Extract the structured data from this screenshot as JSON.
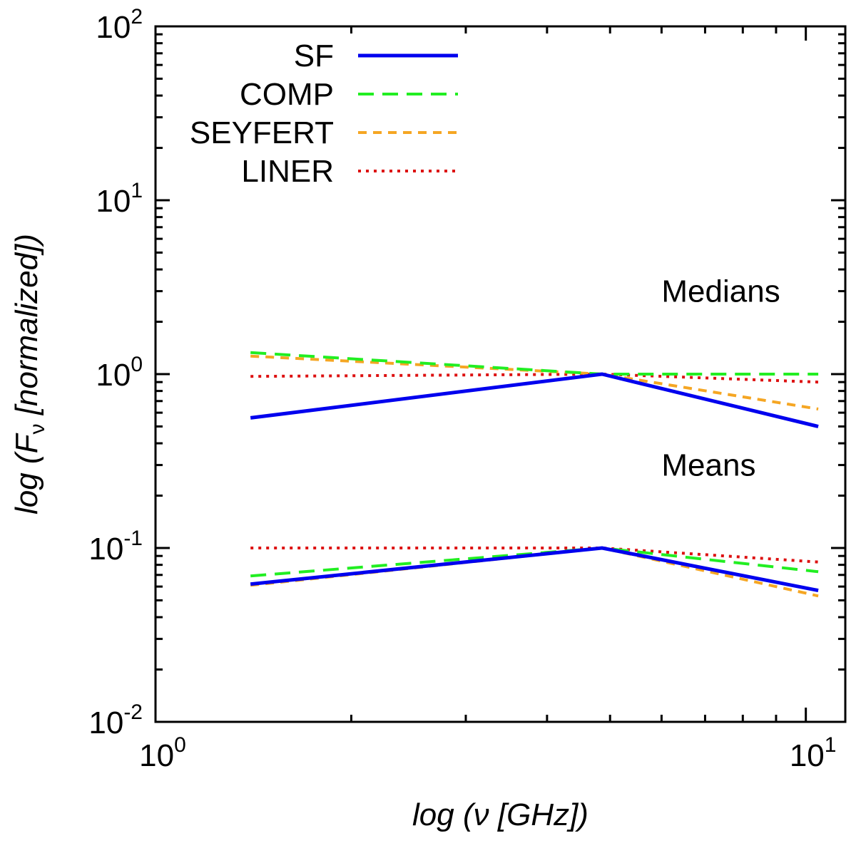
{
  "chart_data": {
    "type": "line",
    "xlabel": "log (ν [GHz])",
    "ylabel": "log (F_ν [normalized])",
    "ylabel_parts": {
      "prefix": "log (F",
      "subscript": "ν",
      "suffix": " [normalized])"
    },
    "x_scale": "log",
    "y_scale": "log",
    "xlim": [
      1,
      11.5
    ],
    "ylim": [
      0.01,
      100
    ],
    "x_ticks": [
      {
        "value": 1,
        "base": "10",
        "exp": "0"
      },
      {
        "value": 10,
        "base": "10",
        "exp": "1"
      }
    ],
    "y_ticks": [
      {
        "value": 0.01,
        "base": "10",
        "exp": "-2"
      },
      {
        "value": 0.1,
        "base": "10",
        "exp": "-1"
      },
      {
        "value": 1,
        "base": "10",
        "exp": "0"
      },
      {
        "value": 10,
        "base": "10",
        "exp": "1"
      },
      {
        "value": 100,
        "base": "10",
        "exp": "2"
      }
    ],
    "grid": false,
    "legend_position": "top-left",
    "annotations": [
      {
        "text": "Medians",
        "x": 6.0,
        "y": 2.6
      },
      {
        "text": "Means",
        "x": 6.0,
        "y": 0.26
      }
    ],
    "series": [
      {
        "name": "SF",
        "group": "Medians",
        "color": "#0000ee",
        "dash": "solid",
        "x": [
          1.4,
          4.86,
          10.45
        ],
        "y": [
          0.56,
          1.0,
          0.5
        ]
      },
      {
        "name": "COMP",
        "group": "Medians",
        "color": "#22ee22",
        "dash": "dashed",
        "x": [
          1.4,
          4.86,
          10.45
        ],
        "y": [
          1.33,
          1.0,
          1.0
        ]
      },
      {
        "name": "SEYFERT",
        "group": "Medians",
        "color": "#f5a623",
        "dash": "short-dashed",
        "x": [
          1.4,
          4.86,
          10.45
        ],
        "y": [
          1.27,
          1.0,
          0.63
        ]
      },
      {
        "name": "LINER",
        "group": "Medians",
        "color": "#dd1111",
        "dash": "dotted",
        "x": [
          1.4,
          4.86,
          10.45
        ],
        "y": [
          0.97,
          1.0,
          0.9
        ]
      },
      {
        "name": "SF",
        "group": "Means",
        "color": "#0000ee",
        "dash": "solid",
        "x": [
          1.4,
          4.86,
          10.45
        ],
        "y": [
          0.062,
          0.1,
          0.057
        ]
      },
      {
        "name": "COMP",
        "group": "Means",
        "color": "#22ee22",
        "dash": "dashed",
        "x": [
          1.4,
          4.86,
          10.45
        ],
        "y": [
          0.069,
          0.1,
          0.073
        ]
      },
      {
        "name": "SEYFERT",
        "group": "Means",
        "color": "#f5a623",
        "dash": "short-dashed",
        "x": [
          1.4,
          4.86,
          10.45
        ],
        "y": [
          0.061,
          0.1,
          0.053
        ]
      },
      {
        "name": "LINER",
        "group": "Means",
        "color": "#dd1111",
        "dash": "dotted",
        "x": [
          1.4,
          4.86,
          10.45
        ],
        "y": [
          0.1,
          0.1,
          0.083
        ]
      }
    ],
    "legend": [
      {
        "label": "SF",
        "color": "#0000ee",
        "dash": "solid"
      },
      {
        "label": "COMP",
        "color": "#22ee22",
        "dash": "dashed"
      },
      {
        "label": "SEYFERT",
        "color": "#f5a623",
        "dash": "short-dashed"
      },
      {
        "label": "LINER",
        "color": "#dd1111",
        "dash": "dotted"
      }
    ]
  }
}
